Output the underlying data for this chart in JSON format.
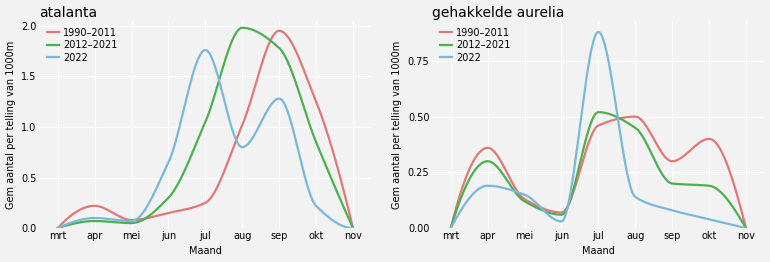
{
  "months": [
    "mrt",
    "apr",
    "mei",
    "jun",
    "jul",
    "aug",
    "sep",
    "okt",
    "nov"
  ],
  "month_indices": [
    0,
    1,
    2,
    3,
    4,
    5,
    6,
    7,
    8
  ],
  "atalanta": {
    "title": "atalanta",
    "ylabel": "Gem aantal per telling van 1000m",
    "xlabel": "Maand",
    "ylim": [
      0,
      2.05
    ],
    "yticks": [
      0.0,
      0.5,
      1.0,
      1.5,
      2.0
    ],
    "ytick_labels": [
      "0.0",
      "0.5",
      "1.0",
      "1.5",
      "2.0"
    ],
    "series": {
      "1990-2011": {
        "color": "#E07878",
        "x": [
          0,
          1,
          2,
          3,
          4,
          5,
          6,
          7,
          8
        ],
        "y": [
          0.0,
          0.22,
          0.08,
          0.15,
          0.25,
          1.02,
          1.95,
          1.25,
          0.0
        ]
      },
      "2012-2021": {
        "color": "#4CAF50",
        "x": [
          0,
          1,
          2,
          3,
          4,
          5,
          6,
          7,
          8
        ],
        "y": [
          0.0,
          0.07,
          0.05,
          0.3,
          1.05,
          1.98,
          1.78,
          0.85,
          0.0
        ]
      },
      "2022": {
        "color": "#7AB8D9",
        "x": [
          0,
          1,
          2,
          3,
          4,
          5,
          6,
          7,
          8
        ],
        "y": [
          0.0,
          0.1,
          0.07,
          0.65,
          1.76,
          0.8,
          1.28,
          0.22,
          0.0
        ]
      }
    }
  },
  "gehakkelde_aurelia": {
    "title": "gehakkelde aurelia",
    "ylabel": "Gem aantal per telling van 1000m",
    "xlabel": "Maand",
    "ylim": [
      0,
      0.93
    ],
    "yticks": [
      0.0,
      0.25,
      0.5,
      0.75
    ],
    "ytick_labels": [
      "0.00",
      "0.25",
      "0.50",
      "0.75"
    ],
    "series": {
      "1990-2011": {
        "color": "#E07878",
        "x": [
          0,
          1,
          2,
          3,
          4,
          5,
          6,
          7,
          8
        ],
        "y": [
          0.0,
          0.36,
          0.13,
          0.07,
          0.46,
          0.5,
          0.3,
          0.4,
          0.0
        ]
      },
      "2012-2021": {
        "color": "#4CAF50",
        "x": [
          0,
          1,
          2,
          3,
          4,
          5,
          6,
          7,
          8
        ],
        "y": [
          0.0,
          0.3,
          0.12,
          0.06,
          0.52,
          0.45,
          0.2,
          0.19,
          0.0
        ]
      },
      "2022": {
        "color": "#7AB8D9",
        "x": [
          0,
          1,
          2,
          3,
          4,
          5,
          6,
          7,
          8
        ],
        "y": [
          0.0,
          0.19,
          0.15,
          0.03,
          0.88,
          0.14,
          0.08,
          0.04,
          0.0
        ]
      }
    }
  },
  "legend_labels": [
    "1990-2011",
    "2012-2021",
    "2022"
  ],
  "legend_colors": [
    "#E07878",
    "#4CAF50",
    "#7AB8D9"
  ],
  "line_width": 1.6,
  "bg_color": "#F2F2F2",
  "grid_color": "#FFFFFF",
  "title_fontsize": 10,
  "label_fontsize": 7,
  "tick_fontsize": 7,
  "legend_fontsize": 7
}
